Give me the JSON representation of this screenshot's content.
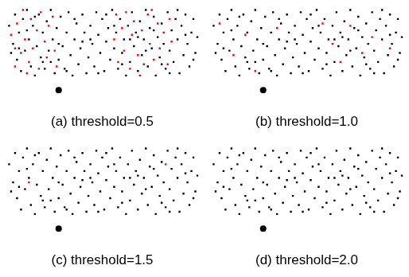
{
  "chart_data": [
    {
      "type": "scatter",
      "title": "(a) threshold=0.5",
      "xlim": [
        0,
        100
      ],
      "ylim": [
        0,
        40
      ],
      "tick_labels": false,
      "grid": false,
      "series": [
        {
          "color": "#000000",
          "marker": "square",
          "x": [
            3,
            5,
            6,
            7,
            8,
            9,
            10,
            11,
            12,
            13,
            14,
            15,
            16,
            17,
            18,
            19,
            20,
            21,
            22,
            23,
            24,
            25,
            26,
            27,
            28,
            29,
            30,
            31,
            32,
            33,
            34,
            35,
            36,
            37,
            38,
            39,
            40,
            41,
            42,
            43,
            44,
            45,
            46,
            47,
            48,
            49,
            50,
            51,
            52,
            53,
            54,
            55,
            56,
            57,
            58,
            59,
            60,
            61,
            62,
            63,
            64,
            65,
            66,
            67,
            68,
            69,
            70,
            71,
            72,
            73,
            74,
            75,
            76,
            77,
            78,
            79,
            80,
            81,
            82,
            83,
            84,
            85,
            86,
            87,
            88,
            89,
            90,
            91,
            92,
            93,
            94,
            95,
            96,
            97,
            98,
            4,
            12,
            20,
            28,
            36,
            44,
            52,
            60,
            68,
            76,
            84,
            92,
            8,
            16,
            24,
            32,
            40,
            48,
            56,
            64,
            72,
            80,
            88,
            96
          ],
          "values": [
            30,
            22,
            35,
            15,
            27,
            10,
            33,
            19,
            37,
            24,
            12,
            30,
            8,
            21,
            35,
            16,
            27,
            11,
            32,
            19,
            37,
            24,
            9,
            29,
            15,
            34,
            21,
            11,
            27,
            36,
            17,
            8,
            24,
            31,
            13,
            20,
            35,
            27,
            9,
            16,
            30,
            22,
            12,
            36,
            26,
            18,
            33,
            10,
            23,
            29,
            15,
            37,
            20,
            27,
            11,
            33,
            18,
            24,
            8,
            30,
            14,
            36,
            21,
            27,
            10,
            32,
            17,
            24,
            37,
            12,
            29,
            20,
            34,
            8,
            25,
            16,
            31,
            22,
            11,
            36,
            19,
            28,
            14,
            33,
            24,
            9,
            30,
            17,
            35,
            22,
            12,
            27,
            33,
            18,
            25,
            18,
            28,
            14,
            22,
            33,
            24,
            35,
            13,
            25,
            28,
            9,
            26,
            20,
            34,
            14,
            10,
            23,
            9,
            30,
            24,
            19,
            13,
            37,
            15
          ]
        },
        {
          "color": "#ff0000",
          "marker": "square",
          "x": [
            4,
            6,
            7,
            9,
            10,
            11,
            13,
            14,
            15,
            17,
            18,
            19,
            21,
            22,
            23,
            25,
            26,
            27,
            6,
            12,
            56,
            57,
            58,
            60,
            61,
            62,
            64,
            65,
            66,
            68,
            70,
            71,
            73,
            74,
            76,
            78,
            79,
            81,
            83,
            84,
            85,
            69,
            75
          ],
          "values": [
            26,
            12,
            31,
            18,
            37,
            24,
            14,
            33,
            20,
            28,
            11,
            36,
            23,
            16,
            30,
            34,
            19,
            12,
            20,
            9,
            24,
            35,
            14,
            29,
            19,
            36,
            11,
            26,
            32,
            17,
            28,
            13,
            35,
            22,
            15,
            31,
            20,
            27,
            13,
            33,
            23,
            8,
            37
          ]
        },
        {
          "color": "#000000",
          "marker": "circle",
          "x": [
            28
          ],
          "values": [
            1.5
          ]
        }
      ]
    },
    {
      "type": "scatter",
      "title": "(b) threshold=1.0",
      "xlim": [
        0,
        100
      ],
      "ylim": [
        0,
        40
      ],
      "tick_labels": false,
      "grid": false,
      "series": [
        {
          "color": "#000000",
          "marker": "square",
          "x": [
            3,
            5,
            6,
            7,
            8,
            9,
            10,
            11,
            12,
            13,
            14,
            15,
            16,
            17,
            18,
            19,
            20,
            21,
            22,
            23,
            24,
            25,
            26,
            27,
            28,
            29,
            30,
            31,
            32,
            33,
            34,
            35,
            36,
            37,
            38,
            39,
            40,
            41,
            42,
            43,
            44,
            45,
            46,
            47,
            48,
            49,
            50,
            51,
            52,
            53,
            54,
            55,
            56,
            57,
            58,
            59,
            60,
            61,
            62,
            63,
            64,
            65,
            66,
            67,
            68,
            69,
            70,
            71,
            72,
            73,
            74,
            75,
            76,
            77,
            78,
            79,
            80,
            81,
            82,
            83,
            84,
            85,
            86,
            87,
            88,
            89,
            90,
            91,
            92,
            93,
            94,
            95,
            96,
            97,
            98,
            4,
            12,
            20,
            28,
            36,
            44,
            52,
            60,
            68,
            76,
            84,
            92,
            8,
            16,
            24,
            32,
            40,
            48,
            56,
            64,
            72,
            80,
            88,
            96
          ],
          "values": [
            30,
            22,
            35,
            15,
            27,
            10,
            33,
            19,
            37,
            24,
            12,
            30,
            8,
            21,
            35,
            16,
            27,
            11,
            32,
            19,
            37,
            24,
            9,
            29,
            15,
            34,
            21,
            11,
            27,
            36,
            17,
            8,
            24,
            31,
            13,
            20,
            35,
            27,
            9,
            16,
            30,
            22,
            12,
            36,
            26,
            18,
            33,
            10,
            23,
            29,
            15,
            37,
            20,
            27,
            11,
            33,
            18,
            24,
            8,
            30,
            14,
            36,
            21,
            27,
            10,
            32,
            17,
            24,
            37,
            12,
            29,
            20,
            34,
            8,
            25,
            16,
            31,
            22,
            11,
            36,
            19,
            28,
            14,
            33,
            24,
            9,
            30,
            17,
            35,
            22,
            12,
            27,
            33,
            18,
            25,
            18,
            28,
            14,
            22,
            33,
            24,
            35,
            13,
            25,
            28,
            9,
            26,
            20,
            34,
            14,
            10,
            23,
            9,
            30,
            24,
            19,
            13,
            37,
            15
          ]
        },
        {
          "color": "#ff0000",
          "marker": "square",
          "x": [
            6,
            13,
            19,
            24,
            35,
            58,
            63,
            67,
            72,
            78,
            83,
            92
          ],
          "values": [
            31,
            17,
            26,
            10,
            29,
            31,
            22,
            14,
            30,
            18,
            25,
            20
          ]
        },
        {
          "color": "#000000",
          "marker": "circle",
          "x": [
            28
          ],
          "values": [
            1.5
          ]
        }
      ]
    },
    {
      "type": "scatter",
      "title": "(c) threshold=1.5",
      "xlim": [
        0,
        100
      ],
      "ylim": [
        0,
        40
      ],
      "tick_labels": false,
      "grid": false,
      "series": [
        {
          "color": "#000000",
          "marker": "square",
          "x": [
            3,
            5,
            6,
            7,
            8,
            9,
            10,
            11,
            12,
            13,
            14,
            15,
            16,
            17,
            18,
            19,
            20,
            21,
            22,
            23,
            24,
            25,
            26,
            27,
            28,
            29,
            30,
            31,
            32,
            33,
            34,
            35,
            36,
            37,
            38,
            39,
            40,
            41,
            42,
            43,
            44,
            45,
            46,
            47,
            48,
            49,
            50,
            51,
            52,
            53,
            54,
            55,
            56,
            57,
            58,
            59,
            60,
            61,
            62,
            63,
            64,
            65,
            66,
            67,
            68,
            69,
            70,
            71,
            72,
            73,
            74,
            75,
            76,
            77,
            78,
            79,
            80,
            81,
            82,
            83,
            84,
            85,
            86,
            87,
            88,
            89,
            90,
            91,
            92,
            93,
            94,
            95,
            96,
            97,
            98,
            4,
            12,
            20,
            28,
            36,
            44,
            52,
            60,
            68,
            76,
            84,
            92,
            8,
            16,
            24,
            32,
            40,
            48,
            56,
            64,
            72,
            80,
            88,
            96
          ],
          "values": [
            30,
            22,
            35,
            15,
            27,
            10,
            33,
            19,
            37,
            24,
            12,
            30,
            8,
            21,
            35,
            16,
            27,
            11,
            32,
            19,
            37,
            24,
            9,
            29,
            15,
            34,
            21,
            11,
            27,
            36,
            17,
            8,
            24,
            31,
            13,
            20,
            35,
            27,
            9,
            16,
            30,
            22,
            12,
            36,
            26,
            18,
            33,
            10,
            23,
            29,
            15,
            37,
            20,
            27,
            11,
            33,
            18,
            24,
            8,
            30,
            14,
            36,
            21,
            27,
            10,
            32,
            17,
            24,
            37,
            12,
            29,
            20,
            34,
            8,
            25,
            16,
            31,
            22,
            11,
            36,
            19,
            28,
            14,
            33,
            24,
            9,
            30,
            17,
            35,
            22,
            12,
            27,
            33,
            18,
            25,
            18,
            28,
            14,
            22,
            33,
            24,
            35,
            13,
            25,
            28,
            9,
            26,
            20,
            34,
            14,
            10,
            23,
            9,
            30,
            24,
            19,
            13,
            37,
            15
          ]
        },
        {
          "color": "#ff0000",
          "marker": "square",
          "x": [
            13,
            82
          ],
          "values": [
            22,
            30
          ]
        },
        {
          "color": "#000000",
          "marker": "circle",
          "x": [
            28
          ],
          "values": [
            1.5
          ]
        }
      ]
    },
    {
      "type": "scatter",
      "title": "(d) threshold=2.0",
      "xlim": [
        0,
        100
      ],
      "ylim": [
        0,
        40
      ],
      "tick_labels": false,
      "grid": false,
      "series": [
        {
          "color": "#000000",
          "marker": "square",
          "x": [
            3,
            5,
            6,
            7,
            8,
            9,
            10,
            11,
            12,
            13,
            14,
            15,
            16,
            17,
            18,
            19,
            20,
            21,
            22,
            23,
            24,
            25,
            26,
            27,
            28,
            29,
            30,
            31,
            32,
            33,
            34,
            35,
            36,
            37,
            38,
            39,
            40,
            41,
            42,
            43,
            44,
            45,
            46,
            47,
            48,
            49,
            50,
            51,
            52,
            53,
            54,
            55,
            56,
            57,
            58,
            59,
            60,
            61,
            62,
            63,
            64,
            65,
            66,
            67,
            68,
            69,
            70,
            71,
            72,
            73,
            74,
            75,
            76,
            77,
            78,
            79,
            80,
            81,
            82,
            83,
            84,
            85,
            86,
            87,
            88,
            89,
            90,
            91,
            92,
            93,
            94,
            95,
            96,
            97,
            98,
            4,
            12,
            20,
            28,
            36,
            44,
            52,
            60,
            68,
            76,
            84,
            92,
            8,
            16,
            24,
            32,
            40,
            48,
            56,
            64,
            72,
            80,
            88,
            96
          ],
          "values": [
            30,
            22,
            35,
            15,
            27,
            10,
            33,
            19,
            37,
            24,
            12,
            30,
            8,
            21,
            35,
            16,
            27,
            11,
            32,
            19,
            37,
            24,
            9,
            29,
            15,
            34,
            21,
            11,
            27,
            36,
            17,
            8,
            24,
            31,
            13,
            20,
            35,
            27,
            9,
            16,
            30,
            22,
            12,
            36,
            26,
            18,
            33,
            10,
            23,
            29,
            15,
            37,
            20,
            27,
            11,
            33,
            18,
            24,
            8,
            30,
            14,
            36,
            21,
            27,
            10,
            32,
            17,
            24,
            37,
            12,
            29,
            20,
            34,
            8,
            25,
            16,
            31,
            22,
            11,
            36,
            19,
            28,
            14,
            33,
            24,
            9,
            30,
            17,
            35,
            22,
            12,
            27,
            33,
            18,
            25,
            18,
            28,
            14,
            22,
            33,
            24,
            35,
            13,
            25,
            28,
            9,
            26,
            20,
            34,
            14,
            10,
            23,
            9,
            30,
            24,
            19,
            13,
            37,
            15
          ]
        },
        {
          "color": "#000000",
          "marker": "circle",
          "x": [
            28
          ],
          "values": [
            1.5
          ]
        }
      ]
    }
  ]
}
